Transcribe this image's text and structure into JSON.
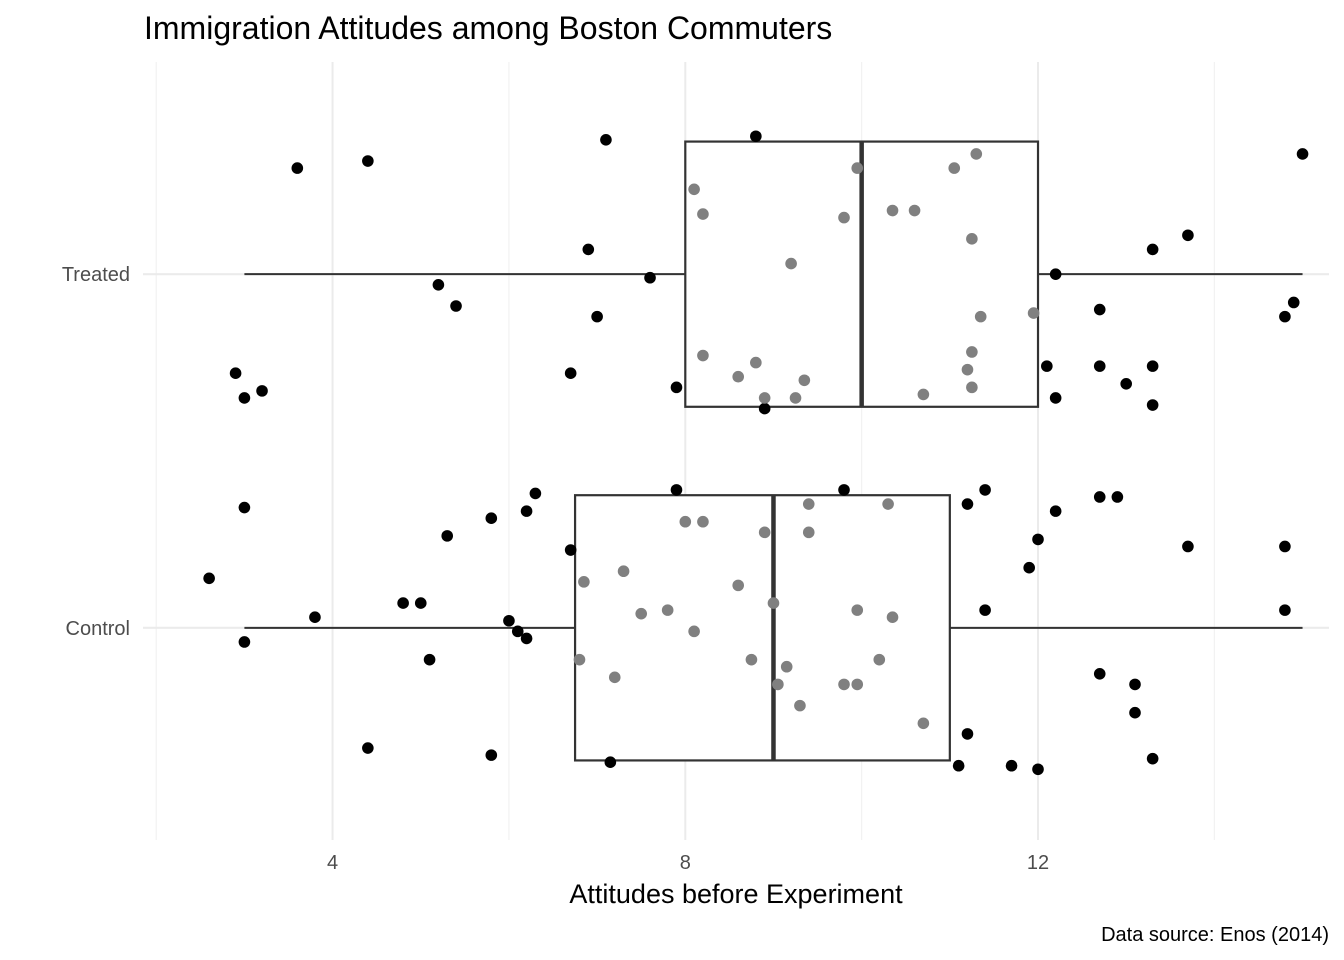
{
  "chart_data": {
    "type": "boxplot",
    "title": "Immigration Attitudes among Boston Commuters",
    "xlabel": "Attitudes before Experiment",
    "ylabel": "",
    "caption": "Data source: Enos (2014)",
    "xlim": [
      1.85,
      15.3
    ],
    "x_ticks": [
      4,
      8,
      12
    ],
    "x_minor_gridlines": [
      2,
      6,
      10,
      14
    ],
    "grid": true,
    "colors": {
      "point": "#000000",
      "point_inside_box": "#808080",
      "box_line": "#333333",
      "grid": "#ebebeb"
    },
    "categories": [
      "Control",
      "Treated"
    ],
    "boxes": [
      {
        "category": "Treated",
        "whisker_low": 3,
        "q1": 8,
        "median": 10,
        "q3": 12,
        "whisker_high": 15
      },
      {
        "category": "Control",
        "whisker_low": 3,
        "q1": 6.75,
        "median": 9,
        "q3": 11,
        "whisker_high": 15
      }
    ],
    "points": {
      "Treated": [
        [
          7.1,
          0.38
        ],
        [
          8.8,
          0.39
        ],
        [
          3.6,
          0.3
        ],
        [
          4.4,
          0.32
        ],
        [
          15.0,
          0.34
        ],
        [
          13.7,
          0.11
        ],
        [
          13.3,
          0.07
        ],
        [
          6.9,
          0.07
        ],
        [
          7.6,
          -0.01
        ],
        [
          5.2,
          -0.03
        ],
        [
          5.4,
          -0.09
        ],
        [
          7.0,
          -0.12
        ],
        [
          12.2,
          -0.0
        ],
        [
          12.7,
          -0.1
        ],
        [
          14.8,
          -0.12
        ],
        [
          14.9,
          -0.08
        ],
        [
          2.9,
          -0.28
        ],
        [
          3.2,
          -0.33
        ],
        [
          3.0,
          -0.35
        ],
        [
          6.7,
          -0.28
        ],
        [
          7.9,
          -0.32
        ],
        [
          8.9,
          -0.38
        ],
        [
          12.1,
          -0.26
        ],
        [
          12.2,
          -0.35
        ],
        [
          12.7,
          -0.26
        ],
        [
          13.0,
          -0.31
        ],
        [
          13.3,
          -0.26
        ],
        [
          13.3,
          -0.37
        ],
        [
          8.1,
          0.24
        ],
        [
          8.2,
          0.17
        ],
        [
          9.2,
          0.03
        ],
        [
          9.8,
          0.16
        ],
        [
          9.95,
          0.3
        ],
        [
          10.35,
          0.18
        ],
        [
          10.6,
          0.18
        ],
        [
          11.05,
          0.3
        ],
        [
          11.3,
          0.34
        ],
        [
          11.25,
          0.1
        ],
        [
          11.35,
          -0.12
        ],
        [
          11.95,
          -0.11
        ],
        [
          8.2,
          -0.23
        ],
        [
          8.6,
          -0.29
        ],
        [
          8.8,
          -0.25
        ],
        [
          9.35,
          -0.3
        ],
        [
          8.9,
          -0.35
        ],
        [
          9.25,
          -0.35
        ],
        [
          11.2,
          -0.27
        ],
        [
          11.25,
          -0.22
        ],
        [
          11.25,
          -0.32
        ],
        [
          10.7,
          -0.34
        ]
      ],
      "Control": [
        [
          7.9,
          0.39
        ],
        [
          9.8,
          0.39
        ],
        [
          11.4,
          0.39
        ],
        [
          11.2,
          0.35
        ],
        [
          12.7,
          0.37
        ],
        [
          12.9,
          0.37
        ],
        [
          12.2,
          0.33
        ],
        [
          12.0,
          0.25
        ],
        [
          11.9,
          0.17
        ],
        [
          13.7,
          0.23
        ],
        [
          14.8,
          0.23
        ],
        [
          14.8,
          0.05
        ],
        [
          11.4,
          0.05
        ],
        [
          3.0,
          0.34
        ],
        [
          6.3,
          0.38
        ],
        [
          6.2,
          0.33
        ],
        [
          5.8,
          0.31
        ],
        [
          5.3,
          0.26
        ],
        [
          6.7,
          0.22
        ],
        [
          2.6,
          0.14
        ],
        [
          3.8,
          0.03
        ],
        [
          4.8,
          0.07
        ],
        [
          5.0,
          0.07
        ],
        [
          6.0,
          0.02
        ],
        [
          6.1,
          -0.01
        ],
        [
          6.2,
          -0.03
        ],
        [
          3.0,
          -0.04
        ],
        [
          5.1,
          -0.09
        ],
        [
          12.7,
          -0.13
        ],
        [
          13.1,
          -0.16
        ],
        [
          13.1,
          -0.24
        ],
        [
          11.2,
          -0.3
        ],
        [
          4.4,
          -0.34
        ],
        [
          5.8,
          -0.36
        ],
        [
          7.15,
          -0.38
        ],
        [
          11.1,
          -0.39
        ],
        [
          11.7,
          -0.39
        ],
        [
          12.0,
          -0.4
        ],
        [
          13.3,
          -0.37
        ],
        [
          8.0,
          0.3
        ],
        [
          8.2,
          0.3
        ],
        [
          9.4,
          0.35
        ],
        [
          10.3,
          0.35
        ],
        [
          8.9,
          0.27
        ],
        [
          9.4,
          0.27
        ],
        [
          6.85,
          0.13
        ],
        [
          7.3,
          0.16
        ],
        [
          8.6,
          0.12
        ],
        [
          9.0,
          0.07
        ],
        [
          7.5,
          0.04
        ],
        [
          7.8,
          0.05
        ],
        [
          8.1,
          -0.01
        ],
        [
          9.95,
          0.05
        ],
        [
          10.35,
          0.03
        ],
        [
          6.8,
          -0.09
        ],
        [
          7.2,
          -0.14
        ],
        [
          8.75,
          -0.09
        ],
        [
          9.15,
          -0.11
        ],
        [
          9.05,
          -0.16
        ],
        [
          10.2,
          -0.09
        ],
        [
          9.8,
          -0.16
        ],
        [
          9.95,
          -0.16
        ],
        [
          9.3,
          -0.22
        ],
        [
          10.7,
          -0.27
        ]
      ]
    }
  }
}
